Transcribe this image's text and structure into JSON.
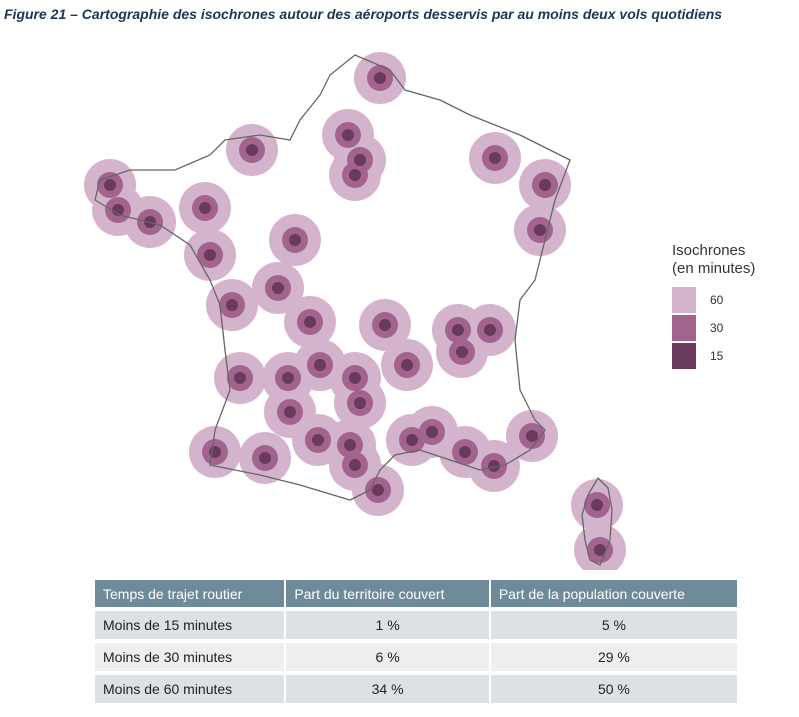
{
  "title": "Figure 21 – Cartographie des isochrones autour des aéroports desservis par au moins deux vols quotidiens",
  "legend": {
    "title": [
      "Isochrones",
      "(en minutes)"
    ],
    "items": [
      60,
      30,
      15
    ]
  },
  "table": {
    "header": [
      "Temps de trajet routier",
      "Part du territoire couvert",
      "Part de la population couverte"
    ],
    "rows": [
      [
        "Moins de 15 minutes",
        "1 %",
        "5 %"
      ],
      [
        "Moins de 30 minutes",
        "6 %",
        "29 %"
      ],
      [
        "Moins de 60 minutes",
        "34 %",
        "50 %"
      ]
    ]
  }
}
